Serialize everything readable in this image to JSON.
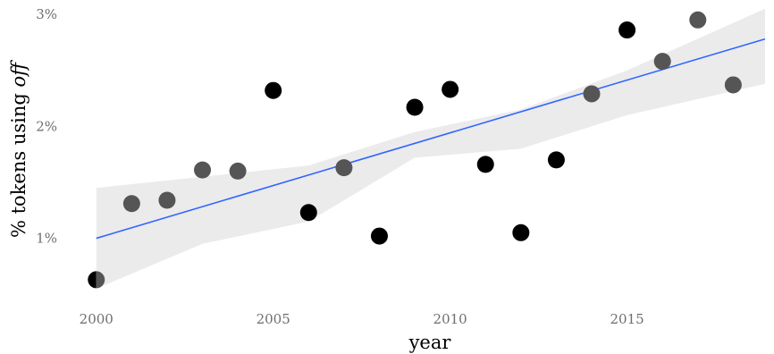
{
  "chart_data": {
    "type": "scatter",
    "xlabel": "year",
    "ylabel_parts": [
      "% tokens using ",
      "off"
    ],
    "x_ticks": [
      2000,
      2005,
      2010,
      2015
    ],
    "y_ticks": [
      1,
      2,
      3
    ],
    "y_tick_labels": [
      "1%",
      "2%",
      "3%"
    ],
    "xlim": [
      1999.4,
      2018.9
    ],
    "ylim": [
      0.35,
      3.08
    ],
    "grid": false,
    "series": [
      {
        "points": [
          {
            "x": 2000,
            "y": 0.63,
            "shade": "half"
          },
          {
            "x": 2001,
            "y": 1.31,
            "shade": "dark-gray"
          },
          {
            "x": 2002,
            "y": 1.34,
            "shade": "dark-gray"
          },
          {
            "x": 2003,
            "y": 1.61,
            "shade": "dark-gray"
          },
          {
            "x": 2004,
            "y": 1.6,
            "shade": "dark-gray"
          },
          {
            "x": 2005,
            "y": 2.32,
            "shade": "black"
          },
          {
            "x": 2006,
            "y": 1.23,
            "shade": "black"
          },
          {
            "x": 2007,
            "y": 1.63,
            "shade": "dark-gray"
          },
          {
            "x": 2008,
            "y": 1.02,
            "shade": "black"
          },
          {
            "x": 2009,
            "y": 2.17,
            "shade": "black"
          },
          {
            "x": 2010,
            "y": 2.33,
            "shade": "black"
          },
          {
            "x": 2011,
            "y": 1.66,
            "shade": "black"
          },
          {
            "x": 2012,
            "y": 1.05,
            "shade": "black"
          },
          {
            "x": 2013,
            "y": 1.7,
            "shade": "black"
          },
          {
            "x": 2014,
            "y": 2.29,
            "shade": "dark-gray"
          },
          {
            "x": 2015,
            "y": 2.86,
            "shade": "black"
          },
          {
            "x": 2016,
            "y": 2.58,
            "shade": "dark-gray"
          },
          {
            "x": 2017,
            "y": 2.95,
            "shade": "dark-gray"
          },
          {
            "x": 2018,
            "y": 2.37,
            "shade": "dark-gray"
          }
        ]
      }
    ],
    "trend_line": {
      "type": "linear",
      "x": [
        2000,
        2018.9
      ],
      "y": [
        1.0,
        2.78
      ],
      "color": "#3366ff"
    },
    "confidence_band": {
      "x": [
        2000,
        2003,
        2006,
        2009,
        2012,
        2015,
        2018.9
      ],
      "upper": [
        1.45,
        1.55,
        1.65,
        1.95,
        2.15,
        2.5,
        3.05
      ],
      "lower": [
        0.55,
        0.95,
        1.15,
        1.72,
        1.8,
        2.1,
        2.38
      ],
      "color": "#ebebeb"
    },
    "colors": {
      "black": "#000000",
      "dark-gray": "#555555"
    }
  }
}
